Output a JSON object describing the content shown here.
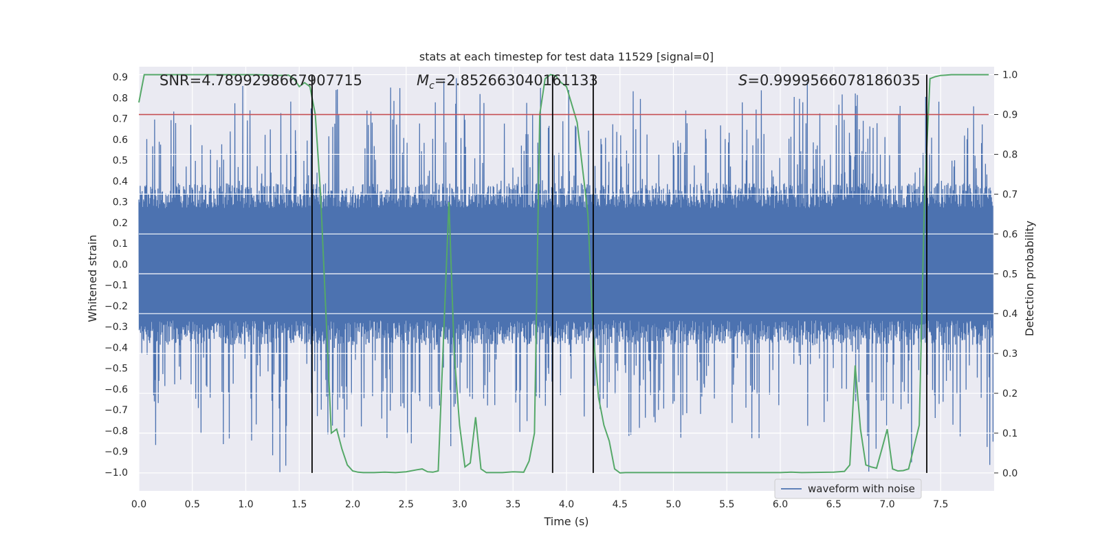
{
  "chart_data": {
    "type": "line",
    "title": "stats at each timestep for test data 11529 [signal=0]",
    "xlabel": "Time (s)",
    "ylabel_left": "Whitened strain",
    "ylabel_right": "Detection probability",
    "xlim": [
      0.0,
      8.0
    ],
    "ylim_left": [
      -1.09,
      0.95
    ],
    "ylim_right": [
      -0.045,
      1.02
    ],
    "x_ticks": [
      "0.0",
      "0.5",
      "1.0",
      "1.5",
      "2.0",
      "2.5",
      "3.0",
      "3.5",
      "4.0",
      "4.5",
      "5.0",
      "5.5",
      "6.0",
      "6.5",
      "7.0",
      "7.5"
    ],
    "y_ticks_left": [
      "0.9",
      "0.8",
      "0.7",
      "0.6",
      "0.5",
      "0.4",
      "0.3",
      "0.2",
      "0.1",
      "0.0",
      "−0.1",
      "−0.2",
      "−0.3",
      "−0.4",
      "−0.5",
      "−0.6",
      "−0.7",
      "−0.8",
      "−0.9",
      "−1.0"
    ],
    "y_ticks_right": [
      "1.0",
      "0.9",
      "0.8",
      "0.7",
      "0.6",
      "0.5",
      "0.4",
      "0.3",
      "0.2",
      "0.1",
      "0.0"
    ],
    "annotations": {
      "snr": "SNR=4.7899298667907715",
      "mc_symbol": "M",
      "mc_sub": "c",
      "mc_value": "=2.852663040161133",
      "s_symbol": "S",
      "s_value": "=0.9999566078186035"
    },
    "threshold": 0.9,
    "threshold_color": "#c44e52",
    "vertical_lines": [
      1.62,
      3.87,
      4.25,
      7.37
    ],
    "legend": [
      "waveform with noise"
    ],
    "series": [
      {
        "name": "waveform with noise",
        "color": "#4c72b0",
        "axis": "left",
        "t_start": 0.0,
        "t_end": 7.99,
        "typical_amplitude": 0.3,
        "peak_range": [
          -1.0,
          0.9
        ]
      },
      {
        "name": "detection probability",
        "color": "#55a868",
        "axis": "right",
        "x": [
          0.0,
          0.05,
          0.1,
          0.2,
          0.4,
          0.6,
          0.8,
          1.0,
          1.1,
          1.2,
          1.3,
          1.4,
          1.45,
          1.5,
          1.55,
          1.6,
          1.65,
          1.7,
          1.75,
          1.8,
          1.85,
          1.9,
          1.95,
          2.0,
          2.05,
          2.1,
          2.2,
          2.3,
          2.4,
          2.5,
          2.6,
          2.65,
          2.7,
          2.75,
          2.8,
          2.9,
          2.95,
          3.0,
          3.05,
          3.1,
          3.15,
          3.2,
          3.25,
          3.3,
          3.35,
          3.4,
          3.5,
          3.6,
          3.65,
          3.7,
          3.75,
          3.8,
          3.85,
          3.9,
          3.95,
          4.0,
          4.1,
          4.2,
          4.25,
          4.3,
          4.35,
          4.4,
          4.45,
          4.5,
          4.55,
          4.6,
          4.7,
          5.0,
          5.5,
          6.0,
          6.1,
          6.2,
          6.5,
          6.6,
          6.65,
          6.7,
          6.75,
          6.8,
          6.85,
          6.9,
          6.95,
          7.0,
          7.05,
          7.1,
          7.15,
          7.2,
          7.3,
          7.35,
          7.4,
          7.45,
          7.5,
          7.55,
          7.6,
          7.7,
          7.95
        ],
        "y": [
          0.93,
          1.0,
          1.0,
          1.0,
          1.0,
          1.0,
          1.0,
          1.0,
          1.0,
          0.999,
          0.998,
          0.999,
          0.99,
          0.97,
          0.98,
          0.97,
          0.9,
          0.7,
          0.4,
          0.1,
          0.11,
          0.06,
          0.02,
          0.005,
          0.002,
          0.001,
          0.001,
          0.002,
          0.001,
          0.003,
          0.008,
          0.01,
          0.003,
          0.002,
          0.005,
          0.68,
          0.3,
          0.12,
          0.015,
          0.025,
          0.14,
          0.01,
          0.001,
          0.001,
          0.001,
          0.001,
          0.003,
          0.002,
          0.03,
          0.1,
          0.9,
          0.99,
          1.0,
          0.997,
          0.98,
          0.97,
          0.88,
          0.65,
          0.35,
          0.19,
          0.12,
          0.08,
          0.01,
          0.0,
          0.001,
          0.001,
          0.001,
          0.001,
          0.001,
          0.001,
          0.002,
          0.001,
          0.002,
          0.004,
          0.02,
          0.27,
          0.11,
          0.02,
          0.015,
          0.012,
          0.06,
          0.11,
          0.01,
          0.005,
          0.006,
          0.01,
          0.12,
          0.7,
          0.99,
          0.995,
          0.998,
          0.999,
          1.0,
          1.0,
          1.0
        ]
      }
    ]
  }
}
